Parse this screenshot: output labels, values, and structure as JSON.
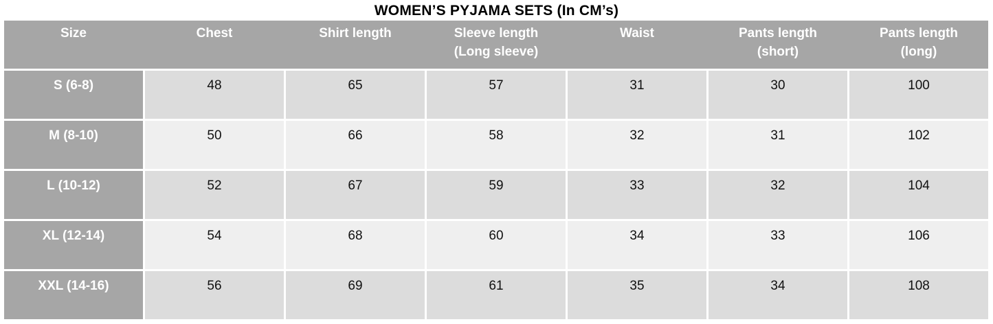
{
  "chart_data": {
    "type": "table",
    "title": "WOMEN’S PYJAMA SETS (In CM’s)",
    "columns": [
      "Size",
      "Chest",
      "Shirt length",
      "Sleeve length\n(Long sleeve)",
      "Waist",
      "Pants length\n(short)",
      "Pants length\n(long)"
    ],
    "rows": [
      {
        "size": "S (6-8)",
        "values": [
          48,
          65,
          57,
          31,
          30,
          100
        ]
      },
      {
        "size": "M (8-10)",
        "values": [
          50,
          66,
          58,
          32,
          31,
          102
        ]
      },
      {
        "size": "L (10-12)",
        "values": [
          52,
          67,
          59,
          33,
          32,
          104
        ]
      },
      {
        "size": "XL (12-14)",
        "values": [
          54,
          68,
          60,
          34,
          33,
          106
        ]
      },
      {
        "size": "XXL (14-16)",
        "values": [
          56,
          69,
          61,
          35,
          34,
          108
        ]
      }
    ]
  },
  "colors": {
    "header_bg": "#a6a6a6",
    "header_text": "#ffffff",
    "band_dark": "#dcdcdc",
    "band_light": "#efefef",
    "value_text": "#111111",
    "page_bg": "#ffffff",
    "title_text": "#000000"
  }
}
